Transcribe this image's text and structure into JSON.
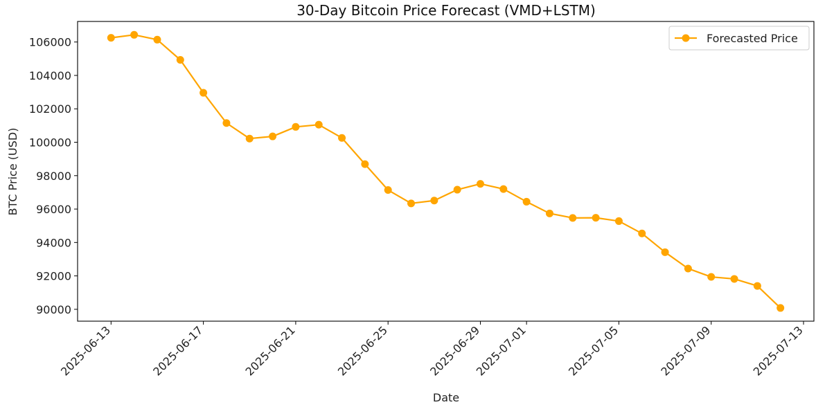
{
  "chart_data": {
    "type": "line",
    "title": "30-Day Bitcoin Price Forecast (VMD+LSTM)",
    "xlabel": "Date",
    "ylabel": "BTC Price (USD)",
    "x": [
      "2025-06-13",
      "2025-06-14",
      "2025-06-15",
      "2025-06-16",
      "2025-06-17",
      "2025-06-18",
      "2025-06-19",
      "2025-06-20",
      "2025-06-21",
      "2025-06-22",
      "2025-06-23",
      "2025-06-24",
      "2025-06-25",
      "2025-06-26",
      "2025-06-27",
      "2025-06-28",
      "2025-06-29",
      "2025-06-30",
      "2025-07-01",
      "2025-07-02",
      "2025-07-03",
      "2025-07-04",
      "2025-07-05",
      "2025-07-06",
      "2025-07-07",
      "2025-07-08",
      "2025-07-09",
      "2025-07-10",
      "2025-07-11",
      "2025-07-12"
    ],
    "series": [
      {
        "name": "Forecasted Price",
        "color": "#FFA500",
        "values": [
          106250,
          106430,
          106140,
          104930,
          102960,
          101150,
          100220,
          100350,
          100920,
          101050,
          100260,
          98690,
          97140,
          96340,
          96510,
          97160,
          97510,
          97200,
          96440,
          95740,
          95470,
          95480,
          95280,
          94540,
          93420,
          92440,
          91940,
          91820,
          91400,
          90080
        ]
      }
    ],
    "xticks": [
      "2025-06-13",
      "2025-06-17",
      "2025-06-21",
      "2025-06-25",
      "2025-06-29",
      "2025-07-01",
      "2025-07-05",
      "2025-07-09",
      "2025-07-13"
    ],
    "yticks": [
      90000,
      92000,
      94000,
      96000,
      98000,
      100000,
      102000,
      104000,
      106000
    ],
    "xlim": [
      "2025-06-11.55",
      "2025-07-13.45"
    ],
    "ylim": [
      89290,
      107230
    ],
    "grid": false,
    "legend": "top-right"
  }
}
